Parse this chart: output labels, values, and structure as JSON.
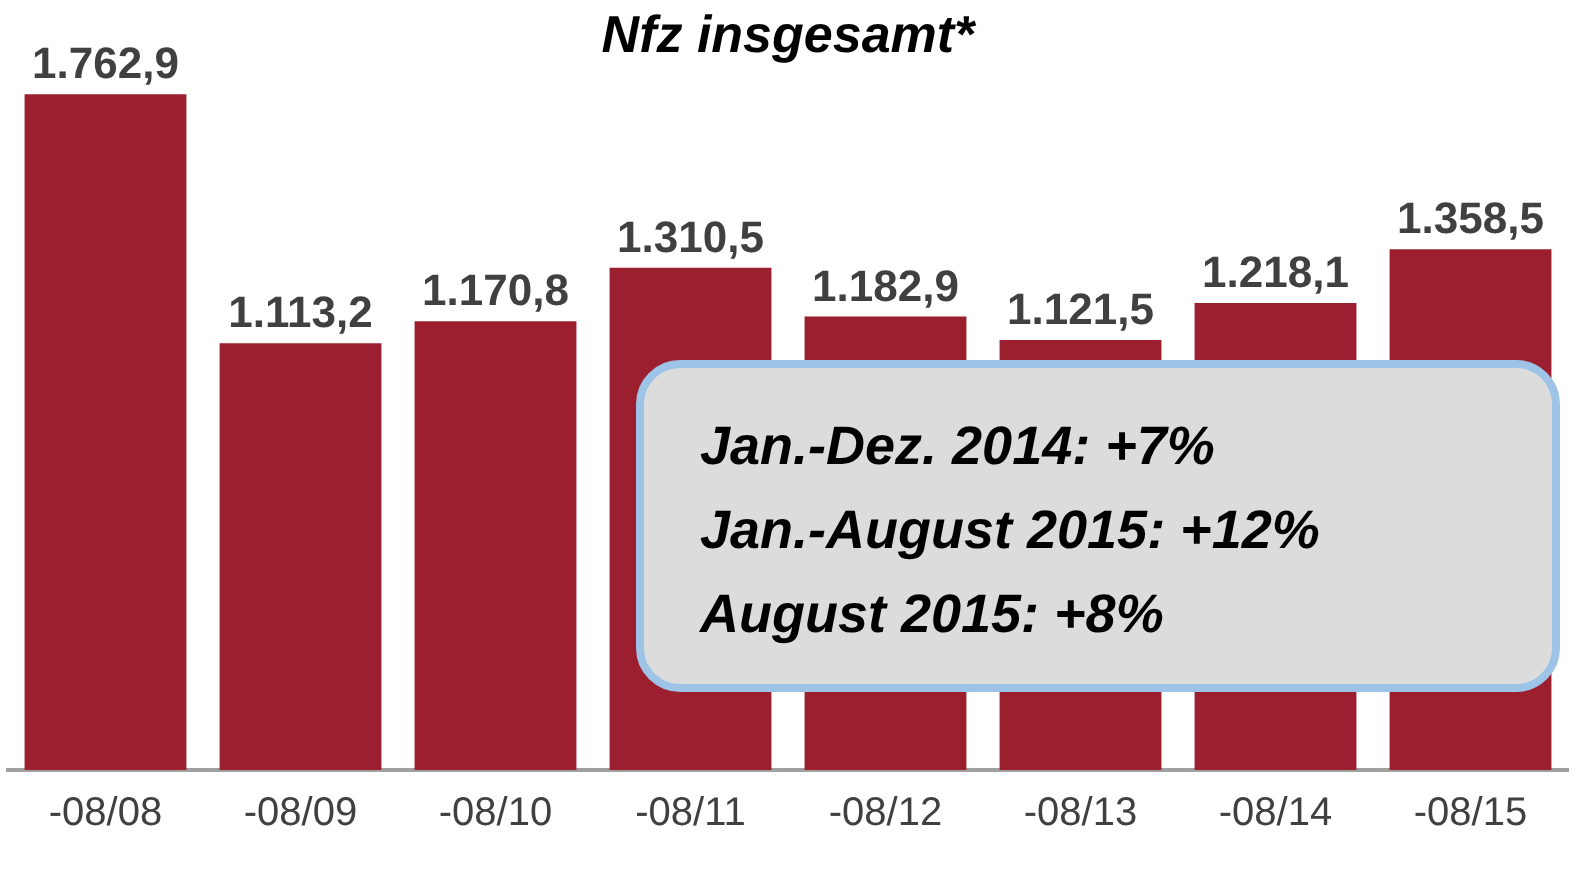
{
  "chart_data": {
    "type": "bar",
    "title": "Nfz insgesamt*",
    "categories": [
      "-08/08",
      "-08/09",
      "-08/10",
      "-08/11",
      "-08/12",
      "-08/13",
      "-08/14",
      "-08/15"
    ],
    "values": [
      1762.9,
      1113.2,
      1170.8,
      1310.5,
      1182.9,
      1121.5,
      1218.1,
      1358.5
    ],
    "value_labels": [
      "1.762,9",
      "1.113,2",
      "1.170,8",
      "1.310,5",
      "1.182,9",
      "1.121,5",
      "1.218,1",
      "1.358,5"
    ],
    "color": "#9b1f2e",
    "grid": false,
    "legend": false,
    "annotations": [
      "Jan.-Dez. 2014: +7%",
      "Jan.-August 2015: +12%",
      "August 2015: +8%"
    ]
  }
}
